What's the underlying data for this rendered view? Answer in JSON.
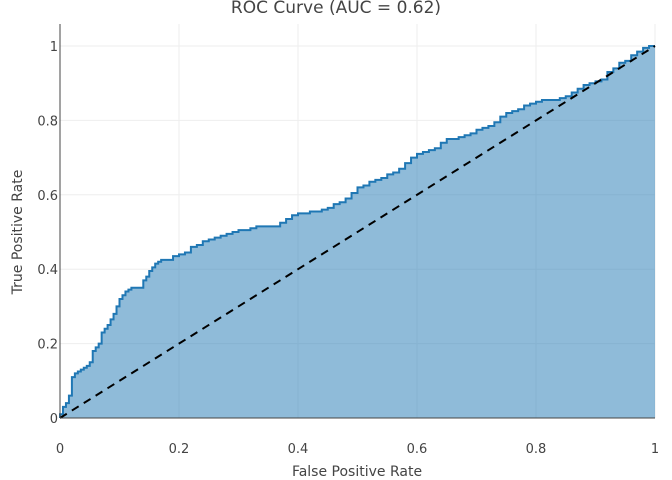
{
  "chart_data": {
    "type": "area",
    "title": "ROC Curve (AUC = 0.62)",
    "xlabel": "False Positive Rate",
    "ylabel": "True Positive Rate",
    "xlim": [
      0,
      1
    ],
    "ylim": [
      0,
      1
    ],
    "x_ticks": [
      {
        "value": 0,
        "label": "0"
      },
      {
        "value": 0.2,
        "label": "0.2"
      },
      {
        "value": 0.4,
        "label": "0.4"
      },
      {
        "value": 0.6,
        "label": "0.6"
      },
      {
        "value": 0.8,
        "label": "0.8"
      },
      {
        "value": 1,
        "label": "1"
      }
    ],
    "y_ticks": [
      {
        "value": 0,
        "label": "0"
      },
      {
        "value": 0.2,
        "label": "0.2"
      },
      {
        "value": 0.4,
        "label": "0.4"
      },
      {
        "value": 0.6,
        "label": "0.6"
      },
      {
        "value": 0.8,
        "label": "0.8"
      },
      {
        "value": 1,
        "label": "1"
      }
    ],
    "grid": true,
    "legend": false,
    "series": [
      {
        "style": "filled-area-line",
        "color": "#1f77b4",
        "fpr": [
          0,
          0.005,
          0.01,
          0.015,
          0.02,
          0.025,
          0.03,
          0.035,
          0.04,
          0.045,
          0.05,
          0.055,
          0.06,
          0.065,
          0.07,
          0.075,
          0.08,
          0.085,
          0.09,
          0.095,
          0.1,
          0.105,
          0.11,
          0.115,
          0.12,
          0.13,
          0.14,
          0.145,
          0.15,
          0.155,
          0.16,
          0.165,
          0.17,
          0.18,
          0.19,
          0.2,
          0.21,
          0.22,
          0.23,
          0.24,
          0.25,
          0.26,
          0.27,
          0.28,
          0.29,
          0.3,
          0.31,
          0.32,
          0.33,
          0.34,
          0.35,
          0.36,
          0.37,
          0.38,
          0.39,
          0.4,
          0.41,
          0.42,
          0.43,
          0.44,
          0.45,
          0.46,
          0.47,
          0.48,
          0.49,
          0.5,
          0.51,
          0.52,
          0.53,
          0.54,
          0.55,
          0.56,
          0.57,
          0.58,
          0.59,
          0.6,
          0.61,
          0.62,
          0.63,
          0.64,
          0.65,
          0.66,
          0.67,
          0.68,
          0.69,
          0.7,
          0.71,
          0.72,
          0.73,
          0.74,
          0.75,
          0.76,
          0.77,
          0.78,
          0.79,
          0.8,
          0.81,
          0.82,
          0.83,
          0.84,
          0.85,
          0.86,
          0.87,
          0.88,
          0.89,
          0.9,
          0.91,
          0.92,
          0.93,
          0.94,
          0.95,
          0.96,
          0.97,
          0.98,
          0.99,
          1
        ],
        "tpr": [
          0.01,
          0.03,
          0.04,
          0.06,
          0.11,
          0.12,
          0.125,
          0.13,
          0.135,
          0.14,
          0.15,
          0.18,
          0.19,
          0.2,
          0.23,
          0.24,
          0.25,
          0.265,
          0.28,
          0.3,
          0.32,
          0.33,
          0.34,
          0.345,
          0.35,
          0.35,
          0.37,
          0.38,
          0.395,
          0.405,
          0.415,
          0.42,
          0.425,
          0.425,
          0.435,
          0.44,
          0.445,
          0.46,
          0.465,
          0.475,
          0.48,
          0.485,
          0.49,
          0.495,
          0.5,
          0.505,
          0.505,
          0.51,
          0.515,
          0.515,
          0.515,
          0.515,
          0.525,
          0.535,
          0.545,
          0.55,
          0.55,
          0.555,
          0.555,
          0.56,
          0.565,
          0.575,
          0.58,
          0.59,
          0.605,
          0.62,
          0.625,
          0.635,
          0.64,
          0.645,
          0.655,
          0.66,
          0.67,
          0.685,
          0.7,
          0.71,
          0.715,
          0.72,
          0.725,
          0.74,
          0.75,
          0.75,
          0.755,
          0.76,
          0.765,
          0.775,
          0.78,
          0.785,
          0.795,
          0.81,
          0.82,
          0.825,
          0.83,
          0.84,
          0.845,
          0.85,
          0.855,
          0.855,
          0.855,
          0.86,
          0.865,
          0.875,
          0.885,
          0.895,
          0.9,
          0.905,
          0.91,
          0.93,
          0.94,
          0.955,
          0.96,
          0.975,
          0.985,
          0.995,
          1.0,
          1.0
        ]
      },
      {
        "style": "dashed-reference",
        "color": "#000000",
        "fpr": [
          0,
          1
        ],
        "tpr": [
          0,
          1
        ]
      }
    ]
  }
}
